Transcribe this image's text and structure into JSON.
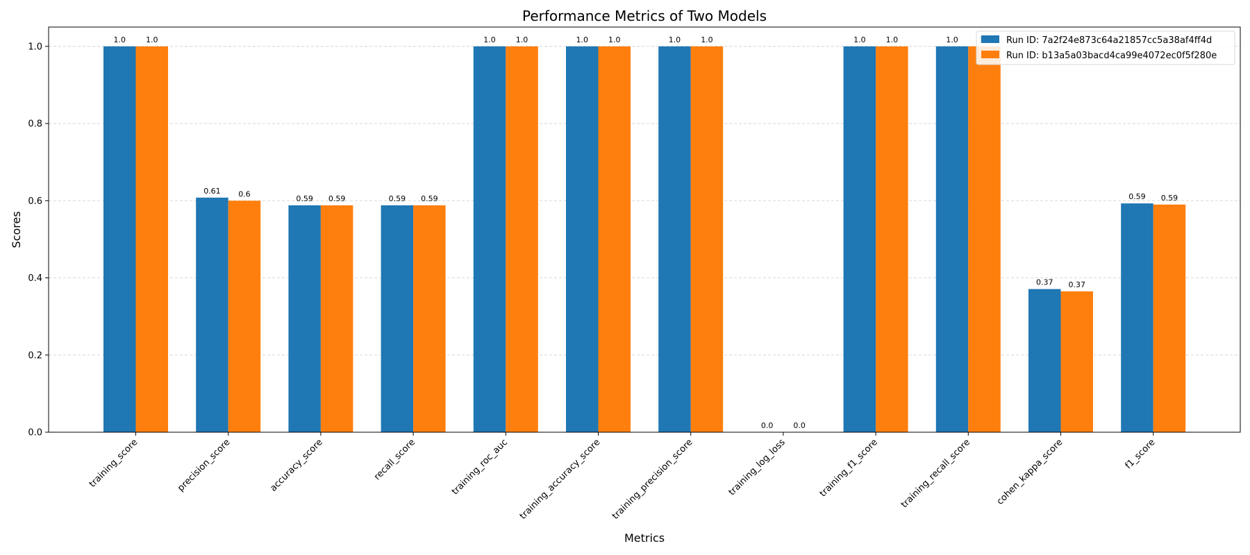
{
  "chart_data": {
    "type": "bar",
    "title": "Performance Metrics of Two Models",
    "xlabel": "Metrics",
    "ylabel": "Scores",
    "ylim": [
      0,
      1.05
    ],
    "yticks": [
      "0.0",
      "0.2",
      "0.4",
      "0.6",
      "0.8",
      "1.0"
    ],
    "grid": "y-dashed",
    "legend_position": "top-right",
    "categories": [
      "training_score",
      "precision_score",
      "accuracy_score",
      "recall_score",
      "training_roc_auc",
      "training_accuracy_score",
      "training_precision_score",
      "training_log_loss",
      "training_f1_score",
      "training_recall_score",
      "cohen_kappa_score",
      "f1_score"
    ],
    "series": [
      {
        "name": "Run ID: 7a2f24e873c64a21857cc5a38af4ff4d",
        "color": "#1f77b4",
        "values": [
          1.0,
          0.608,
          0.588,
          0.588,
          1.0,
          1.0,
          1.0,
          0.0,
          1.0,
          1.0,
          0.371,
          0.593
        ],
        "labels": [
          "1.0",
          "0.61",
          "0.59",
          "0.59",
          "1.0",
          "1.0",
          "1.0",
          "0.0",
          "1.0",
          "1.0",
          "0.37",
          "0.59"
        ]
      },
      {
        "name": "Run ID: b13a5a03bacd4ca99e4072ec0f5f280e",
        "color": "#ff7f0e",
        "values": [
          1.0,
          0.6,
          0.588,
          0.588,
          1.0,
          1.0,
          1.0,
          0.0,
          1.0,
          1.0,
          0.365,
          0.59
        ],
        "labels": [
          "1.0",
          "0.6",
          "0.59",
          "0.59",
          "1.0",
          "1.0",
          "1.0",
          "0.0",
          "1.0",
          "1.0",
          "0.37",
          "0.59"
        ]
      }
    ]
  }
}
